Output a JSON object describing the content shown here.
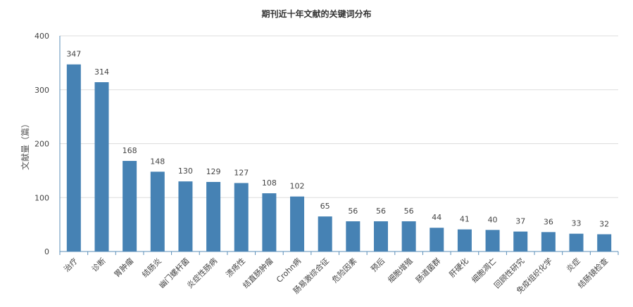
{
  "chart_data": {
    "type": "bar",
    "title": "期刊近十年文献的关键词分布",
    "xlabel": "",
    "ylabel": "文献量（篇）",
    "categories": [
      "治疗",
      "诊断",
      "胃肿瘤",
      "结肠炎",
      "幽门螺杆菌",
      "炎症性肠病",
      "溃疡性",
      "结直肠肿瘤",
      "Crohn病",
      "肠易激综合征",
      "危险因素",
      "预后",
      "细胞增殖",
      "肠道菌群",
      "肝硬化",
      "细胞凋亡",
      "回顾性研究",
      "免疫组织化学",
      "炎症",
      "结肠镜检查"
    ],
    "values": [
      347,
      314,
      168,
      148,
      130,
      129,
      127,
      108,
      102,
      65,
      56,
      56,
      56,
      44,
      41,
      40,
      37,
      36,
      33,
      32
    ],
    "ylim": [
      0,
      400
    ],
    "yticks": [
      0,
      100,
      200,
      300,
      400
    ],
    "grid": true,
    "bar_color": "#4682b4"
  }
}
